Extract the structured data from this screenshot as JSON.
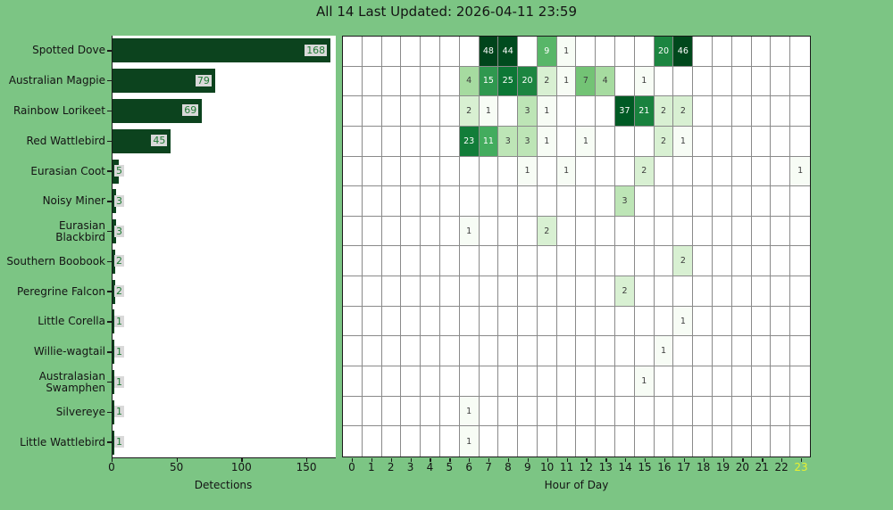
{
  "title": "All 14 Last Updated: 2026-04-11 23:59",
  "colors": {
    "background": "#7cc584",
    "bar_fill": "#0c431e",
    "bar_label_bg": "#d9d9d9",
    "bar_label_text": "#1e7b34",
    "highlight_hour_label": "#e8f030",
    "grid_line": "#8a8a8a",
    "tick_label": "#141414"
  },
  "chart_data": [
    {
      "type": "bar",
      "orientation": "horizontal",
      "title": "All 14 Last Updated: 2026-04-11 23:59",
      "xlabel": "Detections",
      "x_ticks": [
        0,
        50,
        100,
        150
      ],
      "xlim": [
        0,
        172
      ],
      "categories": [
        "Spotted Dove",
        "Australian Magpie",
        "Rainbow Lorikeet",
        "Red Wattlebird",
        "Eurasian Coot",
        "Noisy Miner",
        "Eurasian Blackbird",
        "Southern Boobook",
        "Peregrine Falcon",
        "Little Corella",
        "Willie-wagtail",
        "Australasian Swamphen",
        "Silvereye",
        "Little Wattlebird"
      ],
      "values": [
        168,
        79,
        69,
        45,
        5,
        3,
        3,
        2,
        2,
        1,
        1,
        1,
        1,
        1
      ]
    },
    {
      "type": "heatmap",
      "xlabel": "Hour of Day",
      "x": [
        0,
        1,
        2,
        3,
        4,
        5,
        6,
        7,
        8,
        9,
        10,
        11,
        12,
        13,
        14,
        15,
        16,
        17,
        18,
        19,
        20,
        21,
        22,
        23
      ],
      "highlighted_x": 23,
      "rows": [
        "Spotted Dove",
        "Australian Magpie",
        "Rainbow Lorikeet",
        "Red Wattlebird",
        "Eurasian Coot",
        "Noisy Miner",
        "Eurasian Blackbird",
        "Southern Boobook",
        "Peregrine Falcon",
        "Little Corella",
        "Willie-wagtail",
        "Australasian Swamphen",
        "Silvereye",
        "Little Wattlebird"
      ],
      "colormap": "Greens",
      "norm": "log",
      "vmin": 1,
      "vmax": 48,
      "matrix": [
        [
          0,
          0,
          0,
          0,
          0,
          0,
          0,
          48,
          44,
          0,
          9,
          1,
          0,
          0,
          0,
          0,
          20,
          46,
          0,
          0,
          0,
          0,
          0,
          0
        ],
        [
          0,
          0,
          0,
          0,
          0,
          0,
          4,
          15,
          25,
          20,
          2,
          1,
          7,
          4,
          0,
          1,
          0,
          0,
          0,
          0,
          0,
          0,
          0,
          0
        ],
        [
          0,
          0,
          0,
          0,
          0,
          0,
          2,
          1,
          0,
          3,
          1,
          0,
          0,
          0,
          37,
          21,
          2,
          2,
          0,
          0,
          0,
          0,
          0,
          0
        ],
        [
          0,
          0,
          0,
          0,
          0,
          0,
          23,
          11,
          3,
          3,
          1,
          0,
          1,
          0,
          0,
          0,
          2,
          1,
          0,
          0,
          0,
          0,
          0,
          0
        ],
        [
          0,
          0,
          0,
          0,
          0,
          0,
          0,
          0,
          0,
          1,
          0,
          1,
          0,
          0,
          0,
          2,
          0,
          0,
          0,
          0,
          0,
          0,
          0,
          1
        ],
        [
          0,
          0,
          0,
          0,
          0,
          0,
          0,
          0,
          0,
          0,
          0,
          0,
          0,
          0,
          3,
          0,
          0,
          0,
          0,
          0,
          0,
          0,
          0,
          0
        ],
        [
          0,
          0,
          0,
          0,
          0,
          0,
          1,
          0,
          0,
          0,
          2,
          0,
          0,
          0,
          0,
          0,
          0,
          0,
          0,
          0,
          0,
          0,
          0,
          0
        ],
        [
          0,
          0,
          0,
          0,
          0,
          0,
          0,
          0,
          0,
          0,
          0,
          0,
          0,
          0,
          0,
          0,
          0,
          2,
          0,
          0,
          0,
          0,
          0,
          0
        ],
        [
          0,
          0,
          0,
          0,
          0,
          0,
          0,
          0,
          0,
          0,
          0,
          0,
          0,
          0,
          2,
          0,
          0,
          0,
          0,
          0,
          0,
          0,
          0,
          0
        ],
        [
          0,
          0,
          0,
          0,
          0,
          0,
          0,
          0,
          0,
          0,
          0,
          0,
          0,
          0,
          0,
          0,
          0,
          1,
          0,
          0,
          0,
          0,
          0,
          0
        ],
        [
          0,
          0,
          0,
          0,
          0,
          0,
          0,
          0,
          0,
          0,
          0,
          0,
          0,
          0,
          0,
          0,
          1,
          0,
          0,
          0,
          0,
          0,
          0,
          0
        ],
        [
          0,
          0,
          0,
          0,
          0,
          0,
          0,
          0,
          0,
          0,
          0,
          0,
          0,
          0,
          0,
          1,
          0,
          0,
          0,
          0,
          0,
          0,
          0,
          0
        ],
        [
          0,
          0,
          0,
          0,
          0,
          0,
          1,
          0,
          0,
          0,
          0,
          0,
          0,
          0,
          0,
          0,
          0,
          0,
          0,
          0,
          0,
          0,
          0,
          0
        ],
        [
          0,
          0,
          0,
          0,
          0,
          0,
          1,
          0,
          0,
          0,
          0,
          0,
          0,
          0,
          0,
          0,
          0,
          0,
          0,
          0,
          0,
          0,
          0,
          0
        ]
      ]
    }
  ]
}
